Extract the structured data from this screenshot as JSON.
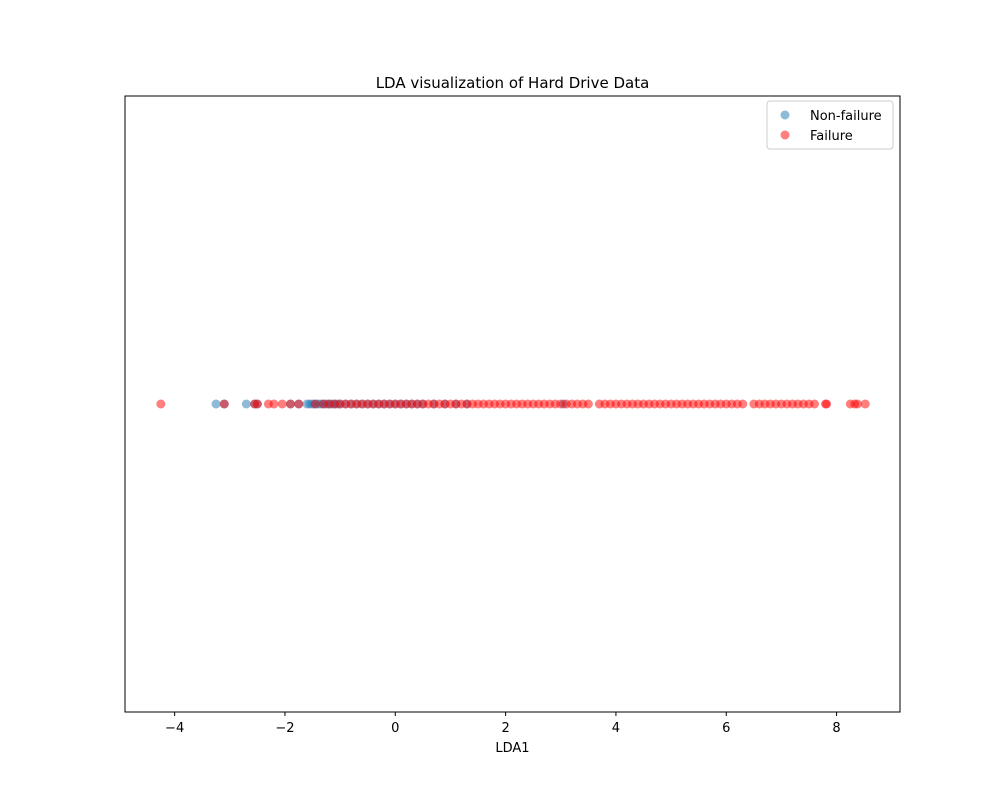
{
  "chart_data": {
    "type": "scatter",
    "title": "LDA visualization of Hard Drive Data",
    "xlabel": "LDA1",
    "ylabel": "",
    "xlim": [
      -4.9,
      9.15
    ],
    "ylim": [
      -1,
      1
    ],
    "xticks": [
      -4,
      -2,
      0,
      2,
      4,
      6,
      8
    ],
    "yticks_visible": false,
    "grid": false,
    "legend_position": "top-right",
    "series": [
      {
        "name": "Non-failure",
        "color": "#1f77b4",
        "alpha": 0.5,
        "points": [
          {
            "x": -3.25,
            "y": 0
          },
          {
            "x": -3.1,
            "y": 0
          },
          {
            "x": -2.7,
            "y": 0
          },
          {
            "x": -2.55,
            "y": 0
          },
          {
            "x": -2.5,
            "y": 0
          },
          {
            "x": -1.9,
            "y": 0
          },
          {
            "x": -1.75,
            "y": 0
          },
          {
            "x": -1.6,
            "y": 0
          },
          {
            "x": -1.55,
            "y": 0
          },
          {
            "x": -1.5,
            "y": 0
          },
          {
            "x": -1.45,
            "y": 0
          },
          {
            "x": -1.4,
            "y": 0
          },
          {
            "x": -1.35,
            "y": 0
          },
          {
            "x": -1.3,
            "y": 0
          },
          {
            "x": -1.25,
            "y": 0
          },
          {
            "x": -1.2,
            "y": 0
          },
          {
            "x": -1.15,
            "y": 0
          },
          {
            "x": -1.1,
            "y": 0
          },
          {
            "x": -1.05,
            "y": 0
          },
          {
            "x": -1.0,
            "y": 0
          },
          {
            "x": -0.9,
            "y": 0
          },
          {
            "x": -0.8,
            "y": 0
          },
          {
            "x": -0.7,
            "y": 0
          },
          {
            "x": -0.6,
            "y": 0
          },
          {
            "x": -0.5,
            "y": 0
          },
          {
            "x": -0.4,
            "y": 0
          },
          {
            "x": -0.3,
            "y": 0
          },
          {
            "x": -0.2,
            "y": 0
          },
          {
            "x": -0.1,
            "y": 0
          },
          {
            "x": 0.0,
            "y": 0
          },
          {
            "x": 0.1,
            "y": 0
          },
          {
            "x": 0.2,
            "y": 0
          },
          {
            "x": 0.3,
            "y": 0
          },
          {
            "x": 0.4,
            "y": 0
          },
          {
            "x": 0.5,
            "y": 0
          },
          {
            "x": 0.7,
            "y": 0
          },
          {
            "x": 0.9,
            "y": 0
          },
          {
            "x": 1.1,
            "y": 0
          },
          {
            "x": 1.3,
            "y": 0
          },
          {
            "x": 3.05,
            "y": 0
          }
        ]
      },
      {
        "name": "Failure",
        "color": "#ff0000",
        "alpha": 0.5,
        "points": [
          {
            "x": -4.25,
            "y": 0
          },
          {
            "x": -3.1,
            "y": 0
          },
          {
            "x": -2.55,
            "y": 0
          },
          {
            "x": -2.5,
            "y": 0
          },
          {
            "x": -2.3,
            "y": 0
          },
          {
            "x": -2.2,
            "y": 0
          },
          {
            "x": -2.05,
            "y": 0
          },
          {
            "x": -1.9,
            "y": 0
          },
          {
            "x": -1.75,
            "y": 0
          },
          {
            "x": -1.45,
            "y": 0
          },
          {
            "x": -1.3,
            "y": 0
          },
          {
            "x": -1.2,
            "y": 0
          },
          {
            "x": -1.1,
            "y": 0
          },
          {
            "x": -1.0,
            "y": 0
          },
          {
            "x": -0.9,
            "y": 0
          },
          {
            "x": -0.8,
            "y": 0
          },
          {
            "x": -0.7,
            "y": 0
          },
          {
            "x": -0.6,
            "y": 0
          },
          {
            "x": -0.5,
            "y": 0
          },
          {
            "x": -0.4,
            "y": 0
          },
          {
            "x": -0.3,
            "y": 0
          },
          {
            "x": -0.2,
            "y": 0
          },
          {
            "x": -0.1,
            "y": 0
          },
          {
            "x": 0.0,
            "y": 0
          },
          {
            "x": 0.1,
            "y": 0
          },
          {
            "x": 0.2,
            "y": 0
          },
          {
            "x": 0.3,
            "y": 0
          },
          {
            "x": 0.4,
            "y": 0
          },
          {
            "x": 0.5,
            "y": 0
          },
          {
            "x": 0.6,
            "y": 0
          },
          {
            "x": 0.7,
            "y": 0
          },
          {
            "x": 0.8,
            "y": 0
          },
          {
            "x": 0.9,
            "y": 0
          },
          {
            "x": 1.0,
            "y": 0
          },
          {
            "x": 1.1,
            "y": 0
          },
          {
            "x": 1.2,
            "y": 0
          },
          {
            "x": 1.3,
            "y": 0
          },
          {
            "x": 1.4,
            "y": 0
          },
          {
            "x": 1.5,
            "y": 0
          },
          {
            "x": 1.6,
            "y": 0
          },
          {
            "x": 1.7,
            "y": 0
          },
          {
            "x": 1.8,
            "y": 0
          },
          {
            "x": 1.9,
            "y": 0
          },
          {
            "x": 2.0,
            "y": 0
          },
          {
            "x": 2.1,
            "y": 0
          },
          {
            "x": 2.2,
            "y": 0
          },
          {
            "x": 2.3,
            "y": 0
          },
          {
            "x": 2.4,
            "y": 0
          },
          {
            "x": 2.5,
            "y": 0
          },
          {
            "x": 2.6,
            "y": 0
          },
          {
            "x": 2.7,
            "y": 0
          },
          {
            "x": 2.8,
            "y": 0
          },
          {
            "x": 2.9,
            "y": 0
          },
          {
            "x": 3.0,
            "y": 0
          },
          {
            "x": 3.1,
            "y": 0
          },
          {
            "x": 3.2,
            "y": 0
          },
          {
            "x": 3.3,
            "y": 0
          },
          {
            "x": 3.4,
            "y": 0
          },
          {
            "x": 3.5,
            "y": 0
          },
          {
            "x": 3.7,
            "y": 0
          },
          {
            "x": 3.8,
            "y": 0
          },
          {
            "x": 3.9,
            "y": 0
          },
          {
            "x": 4.0,
            "y": 0
          },
          {
            "x": 4.1,
            "y": 0
          },
          {
            "x": 4.2,
            "y": 0
          },
          {
            "x": 4.3,
            "y": 0
          },
          {
            "x": 4.4,
            "y": 0
          },
          {
            "x": 4.5,
            "y": 0
          },
          {
            "x": 4.6,
            "y": 0
          },
          {
            "x": 4.7,
            "y": 0
          },
          {
            "x": 4.8,
            "y": 0
          },
          {
            "x": 4.9,
            "y": 0
          },
          {
            "x": 5.0,
            "y": 0
          },
          {
            "x": 5.1,
            "y": 0
          },
          {
            "x": 5.2,
            "y": 0
          },
          {
            "x": 5.3,
            "y": 0
          },
          {
            "x": 5.4,
            "y": 0
          },
          {
            "x": 5.5,
            "y": 0
          },
          {
            "x": 5.6,
            "y": 0
          },
          {
            "x": 5.7,
            "y": 0
          },
          {
            "x": 5.8,
            "y": 0
          },
          {
            "x": 5.9,
            "y": 0
          },
          {
            "x": 6.0,
            "y": 0
          },
          {
            "x": 6.1,
            "y": 0
          },
          {
            "x": 6.2,
            "y": 0
          },
          {
            "x": 6.3,
            "y": 0
          },
          {
            "x": 6.5,
            "y": 0
          },
          {
            "x": 6.6,
            "y": 0
          },
          {
            "x": 6.7,
            "y": 0
          },
          {
            "x": 6.8,
            "y": 0
          },
          {
            "x": 6.9,
            "y": 0
          },
          {
            "x": 7.0,
            "y": 0
          },
          {
            "x": 7.1,
            "y": 0
          },
          {
            "x": 7.2,
            "y": 0
          },
          {
            "x": 7.3,
            "y": 0
          },
          {
            "x": 7.4,
            "y": 0
          },
          {
            "x": 7.5,
            "y": 0
          },
          {
            "x": 7.6,
            "y": 0
          },
          {
            "x": 7.8,
            "y": 0
          },
          {
            "x": 7.82,
            "y": 0
          },
          {
            "x": 8.25,
            "y": 0
          },
          {
            "x": 8.33,
            "y": 0
          },
          {
            "x": 8.38,
            "y": 0
          },
          {
            "x": 8.52,
            "y": 0
          }
        ]
      }
    ]
  }
}
